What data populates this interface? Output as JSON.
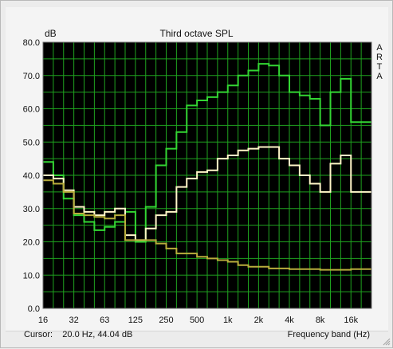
{
  "status": {
    "cursor_label": "Cursor:",
    "cursor_value": "20.0 Hz, 44.04 dB",
    "x_axis_label": "Frequency band (Hz)"
  },
  "side_label": [
    "A",
    "R",
    "T",
    "A"
  ],
  "colors": {
    "plot_bg": "#000000",
    "grid": "#1fa31f",
    "series_green": "#33d633",
    "series_white": "#fff6c8",
    "series_olive": "#b8ad3c"
  },
  "chart_data": {
    "type": "line",
    "title": "Third octave SPL",
    "ylabel": "dB",
    "xlabel": "Frequency band (Hz)",
    "x_scale": "log-third-octave",
    "ylim": [
      0,
      80
    ],
    "y_ticks": [
      "0.0",
      "10.0",
      "20.0",
      "30.0",
      "40.0",
      "50.0",
      "60.0",
      "70.0",
      "80.0"
    ],
    "x_tick_labels": [
      "16",
      "32",
      "63",
      "125",
      "250",
      "500",
      "1k",
      "2k",
      "4k",
      "8k",
      "16k"
    ],
    "bands": [
      "16",
      "20",
      "25",
      "31.5",
      "40",
      "50",
      "63",
      "80",
      "100",
      "125",
      "160",
      "200",
      "250",
      "315",
      "400",
      "500",
      "630",
      "800",
      "1k",
      "1.25k",
      "1.6k",
      "2k",
      "2.5k",
      "3.15k",
      "4k",
      "5k",
      "6.3k",
      "8k",
      "10k",
      "12.5k",
      "16k",
      "20k"
    ],
    "grid": true,
    "legend": "none",
    "series": [
      {
        "color_key": "series_green",
        "values": [
          44,
          40,
          33,
          28,
          26,
          23.5,
          24.5,
          26,
          29,
          20,
          30.5,
          43,
          48,
          53,
          61,
          62.5,
          63.5,
          65,
          67,
          70,
          71.5,
          73.5,
          73,
          70,
          65,
          64,
          63,
          55,
          65,
          69,
          56,
          56
        ]
      },
      {
        "color_key": "series_white",
        "values": [
          40,
          39,
          35.5,
          30.5,
          29,
          28,
          29,
          30,
          22,
          20.5,
          24,
          28,
          29,
          36.5,
          39,
          41,
          41.5,
          45,
          46,
          47.5,
          48,
          48.5,
          48.5,
          45,
          43,
          40,
          37.5,
          35,
          43.5,
          46,
          35,
          35
        ]
      },
      {
        "color_key": "series_olive",
        "values": [
          38.5,
          37.5,
          35,
          28.5,
          28,
          27.5,
          27,
          28,
          20.5,
          20.5,
          20.5,
          19.5,
          18,
          16.5,
          16.5,
          15.5,
          15,
          14.5,
          14,
          13,
          12.5,
          12.5,
          12,
          12,
          11.8,
          11.8,
          11.8,
          11.6,
          11.6,
          11.6,
          11.8,
          11.8
        ]
      }
    ]
  }
}
